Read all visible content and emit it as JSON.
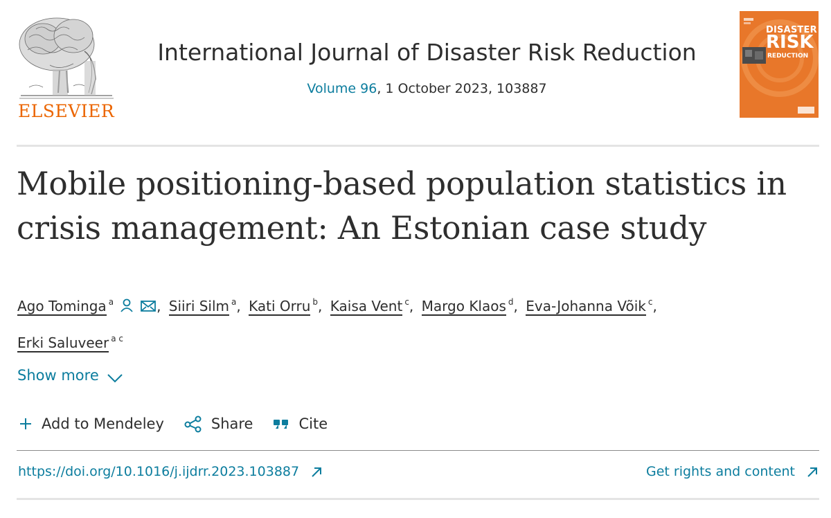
{
  "header": {
    "publisher": "ELSEVIER",
    "journal_title": "International Journal of Disaster Risk Reduction",
    "volume_link": "Volume 96",
    "issue_rest": ", 1 October 2023, 103887",
    "cover": {
      "line1": "DISASTER",
      "line2": "RISK",
      "line3": "REDUCTION"
    }
  },
  "article": {
    "title": "Mobile positioning-based population statistics in crisis management: An Estonian case study"
  },
  "authors": [
    {
      "name": "Ago Tominga",
      "aff": "a"
    },
    {
      "name": "Siiri Silm",
      "aff": "a"
    },
    {
      "name": "Kati Orru",
      "aff": "b"
    },
    {
      "name": "Kaisa Vent",
      "aff": "c"
    },
    {
      "name": "Margo Klaos",
      "aff": "d"
    },
    {
      "name": "Eva-Johanna Võik",
      "aff": "c"
    },
    {
      "name": "Erki Saluveer",
      "aff": "a c"
    }
  ],
  "show_more": "Show more",
  "actions": {
    "mendeley": "Add to Mendeley",
    "share": "Share",
    "cite": "Cite"
  },
  "links": {
    "doi": "https://doi.org/10.1016/j.ijdrr.2023.103887",
    "rights": "Get rights and content"
  },
  "colors": {
    "accent_link": "#0c7d9e",
    "brand_orange": "#eb6500",
    "text": "#2e2e2e"
  },
  "icons": [
    "elsevier-tree-logo",
    "person-icon",
    "envelope-icon",
    "chevron-down-icon",
    "plus-icon",
    "share-icon",
    "quote-icon",
    "external-arrow-icon"
  ]
}
